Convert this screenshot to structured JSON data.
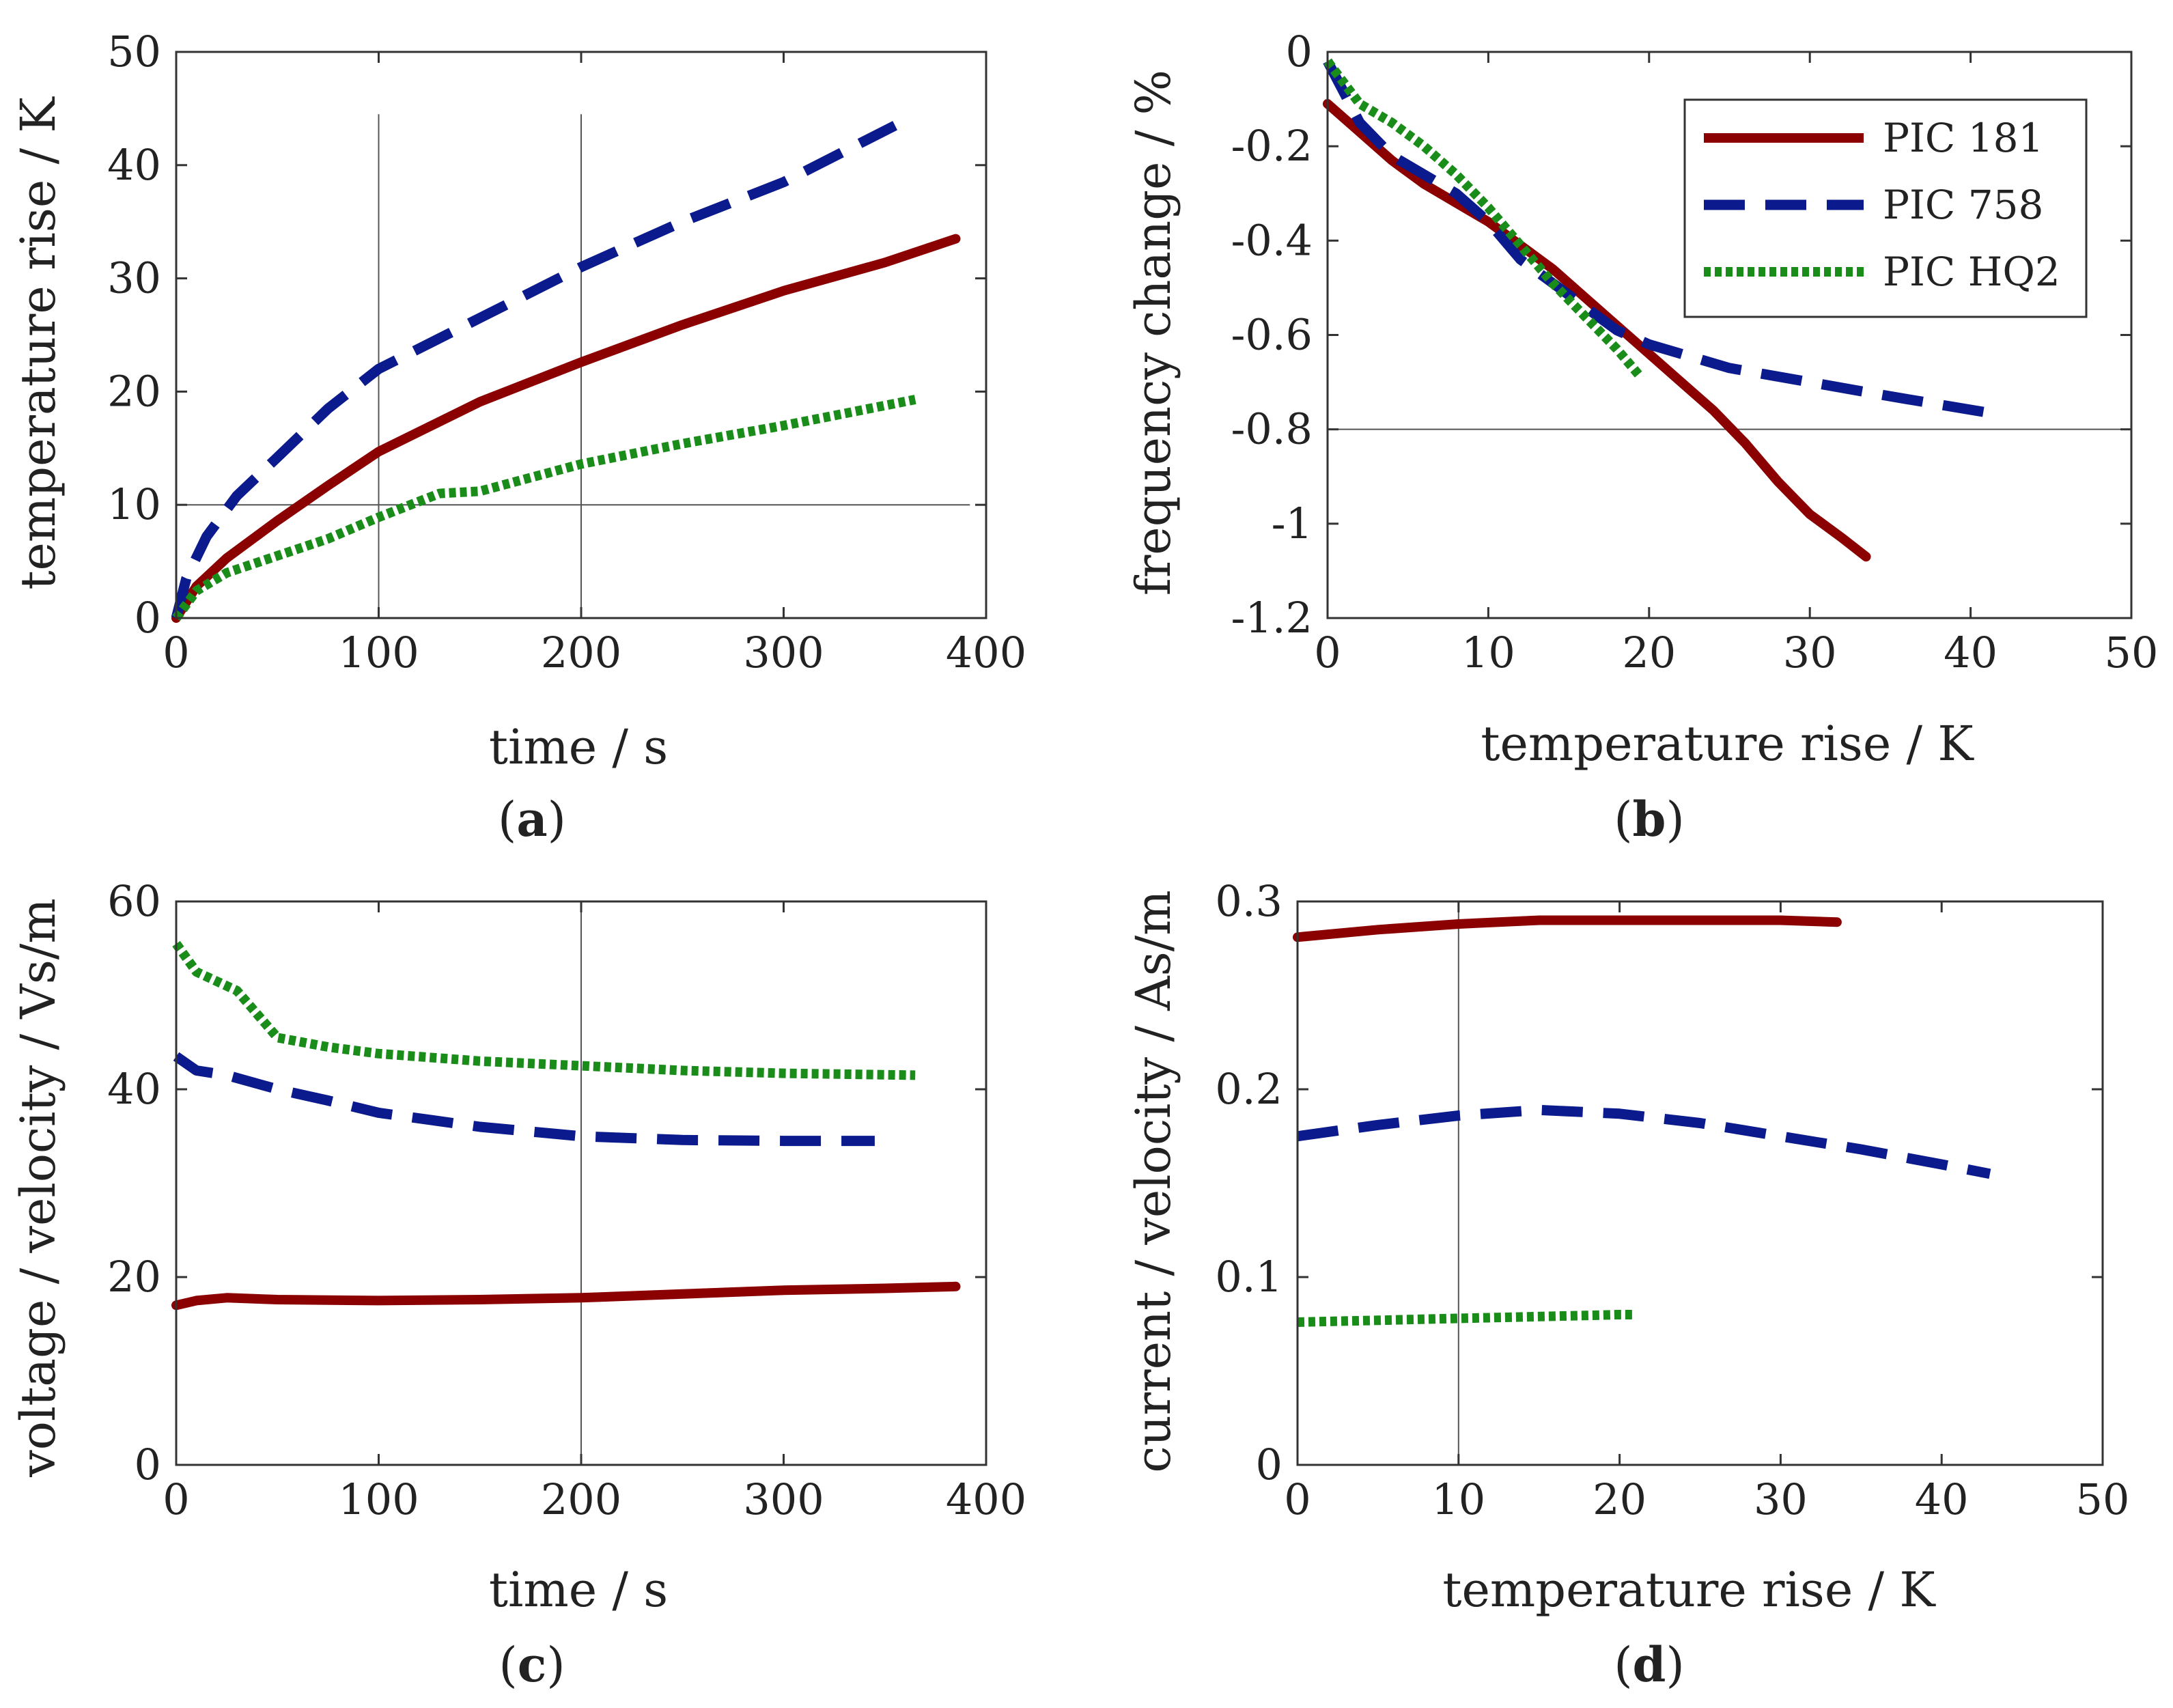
{
  "figure": {
    "series_names": [
      "PIC 181",
      "PIC 758",
      "PIC HQ2"
    ],
    "series_colors": [
      "#8b0000",
      "#0b1a8c",
      "#1a8c1a"
    ],
    "series_styles": [
      "solid",
      "dashed",
      "dotted"
    ]
  },
  "chart_data": [
    {
      "id": "a",
      "type": "line",
      "caption_letter": "a",
      "xlabel": "time / s",
      "ylabel": "temperature rise / K",
      "xlim": [
        0,
        400
      ],
      "ylim": [
        0,
        50
      ],
      "xticks": [
        0,
        100,
        200,
        300,
        400
      ],
      "yticks": [
        0,
        10,
        20,
        30,
        40,
        50
      ],
      "xtick_labels": [
        "0",
        "100",
        "200",
        "300",
        "400"
      ],
      "ytick_labels": [
        "0",
        "10",
        "20",
        "30",
        "40",
        "50"
      ],
      "series": [
        {
          "name": "PIC 181",
          "x": [
            0,
            10,
            25,
            50,
            75,
            100,
            150,
            200,
            250,
            300,
            350,
            385
          ],
          "y": [
            0,
            2.8,
            5.3,
            8.6,
            11.7,
            14.7,
            19.1,
            22.6,
            25.9,
            28.9,
            31.4,
            33.5
          ]
        },
        {
          "name": "PIC 758",
          "x": [
            0,
            5,
            15,
            30,
            50,
            75,
            100,
            150,
            200,
            250,
            300,
            355
          ],
          "y": [
            0,
            3.5,
            7.2,
            10.8,
            14.2,
            18.5,
            22.0,
            26.5,
            31.0,
            35.0,
            38.5,
            43.5
          ]
        },
        {
          "name": "PIC HQ2",
          "x": [
            0,
            10,
            25,
            50,
            75,
            100,
            130,
            150,
            200,
            250,
            300,
            365
          ],
          "y": [
            0,
            2.4,
            4.0,
            5.5,
            7.0,
            8.9,
            11.0,
            11.2,
            13.6,
            15.4,
            17.0,
            19.3
          ]
        }
      ]
    },
    {
      "id": "b",
      "type": "line",
      "caption_letter": "b",
      "xlabel": "temperature rise / K",
      "ylabel": "frequency change / %",
      "xlim": [
        0,
        50
      ],
      "ylim": [
        -1.2,
        0
      ],
      "xticks": [
        0,
        10,
        20,
        30,
        40,
        50
      ],
      "yticks": [
        -1.2,
        -1,
        -0.8,
        -0.6,
        -0.4,
        -0.2,
        0
      ],
      "xtick_labels": [
        "0",
        "10",
        "20",
        "30",
        "40",
        "50"
      ],
      "ytick_labels": [
        "-1.2",
        "-1",
        "-0.8",
        "-0.6",
        "-0.4",
        "-0.2",
        "0"
      ],
      "legend": {
        "entries": [
          "PIC 181",
          "PIC 758",
          "PIC HQ2"
        ],
        "location": "top-right"
      },
      "series": [
        {
          "name": "PIC 181",
          "x": [
            0,
            2,
            4,
            6,
            8,
            10,
            12,
            14,
            16,
            18,
            20,
            22,
            24,
            26,
            28,
            30,
            32,
            33.5
          ],
          "y": [
            -0.11,
            -0.17,
            -0.23,
            -0.28,
            -0.32,
            -0.36,
            -0.41,
            -0.46,
            -0.52,
            -0.58,
            -0.64,
            -0.7,
            -0.76,
            -0.83,
            -0.91,
            -0.98,
            -1.03,
            -1.07
          ]
        },
        {
          "name": "PIC 758",
          "x": [
            0,
            2,
            4,
            6,
            8,
            10,
            12,
            14,
            16,
            18,
            20,
            25,
            30,
            35,
            42
          ],
          "y": [
            -0.02,
            -0.15,
            -0.22,
            -0.26,
            -0.3,
            -0.36,
            -0.44,
            -0.49,
            -0.54,
            -0.59,
            -0.62,
            -0.67,
            -0.7,
            -0.73,
            -0.77
          ]
        },
        {
          "name": "PIC HQ2",
          "x": [
            0,
            2,
            4,
            6,
            8,
            10,
            12,
            14,
            16,
            18,
            19.5
          ],
          "y": [
            -0.02,
            -0.11,
            -0.15,
            -0.2,
            -0.26,
            -0.33,
            -0.41,
            -0.49,
            -0.56,
            -0.63,
            -0.69
          ]
        }
      ]
    },
    {
      "id": "c",
      "type": "line",
      "caption_letter": "c",
      "xlabel": "time / s",
      "ylabel": "voltage / velocity / Vs/m",
      "xlim": [
        0,
        400
      ],
      "ylim": [
        0,
        60
      ],
      "xticks": [
        0,
        100,
        200,
        300,
        400
      ],
      "yticks": [
        0,
        20,
        40,
        60
      ],
      "xtick_labels": [
        "0",
        "100",
        "200",
        "300",
        "400"
      ],
      "ytick_labels": [
        "0",
        "20",
        "40",
        "60"
      ],
      "series": [
        {
          "name": "PIC 181",
          "x": [
            0,
            10,
            25,
            50,
            100,
            150,
            200,
            250,
            300,
            350,
            385
          ],
          "y": [
            17.0,
            17.5,
            17.8,
            17.6,
            17.5,
            17.6,
            17.8,
            18.2,
            18.6,
            18.8,
            19.0
          ]
        },
        {
          "name": "PIC 758",
          "x": [
            0,
            10,
            25,
            50,
            75,
            100,
            150,
            200,
            250,
            300,
            345
          ],
          "y": [
            43.5,
            42.0,
            41.5,
            40.0,
            38.8,
            37.5,
            36.0,
            35.0,
            34.6,
            34.5,
            34.5
          ]
        },
        {
          "name": "PIC HQ2",
          "x": [
            0,
            10,
            20,
            30,
            40,
            50,
            75,
            100,
            150,
            200,
            250,
            300,
            365
          ],
          "y": [
            55.5,
            52.5,
            51.5,
            50.5,
            48.0,
            45.5,
            44.5,
            43.8,
            43.0,
            42.5,
            42.0,
            41.7,
            41.5
          ]
        }
      ]
    },
    {
      "id": "d",
      "type": "line",
      "caption_letter": "d",
      "xlabel": "temperature rise / K",
      "ylabel": "current / velocity / As/m",
      "xlim": [
        0,
        50
      ],
      "ylim": [
        0,
        0.3
      ],
      "xticks": [
        0,
        10,
        20,
        30,
        40,
        50
      ],
      "yticks": [
        0,
        0.1,
        0.2,
        0.3
      ],
      "xtick_labels": [
        "0",
        "10",
        "20",
        "30",
        "40",
        "50"
      ],
      "ytick_labels": [
        "0",
        "0.1",
        "0.2",
        "0.3"
      ],
      "series": [
        {
          "name": "PIC 181",
          "x": [
            0,
            5,
            10,
            15,
            20,
            25,
            30,
            33.5
          ],
          "y": [
            0.281,
            0.285,
            0.288,
            0.29,
            0.29,
            0.29,
            0.29,
            0.289
          ]
        },
        {
          "name": "PIC 758",
          "x": [
            0,
            5,
            10,
            15,
            20,
            25,
            30,
            35,
            40,
            43
          ],
          "y": [
            0.175,
            0.181,
            0.186,
            0.189,
            0.187,
            0.182,
            0.175,
            0.168,
            0.16,
            0.155
          ]
        },
        {
          "name": "PIC HQ2",
          "x": [
            0,
            5,
            10,
            15,
            20,
            21
          ],
          "y": [
            0.076,
            0.077,
            0.078,
            0.079,
            0.08,
            0.08
          ]
        }
      ]
    }
  ]
}
